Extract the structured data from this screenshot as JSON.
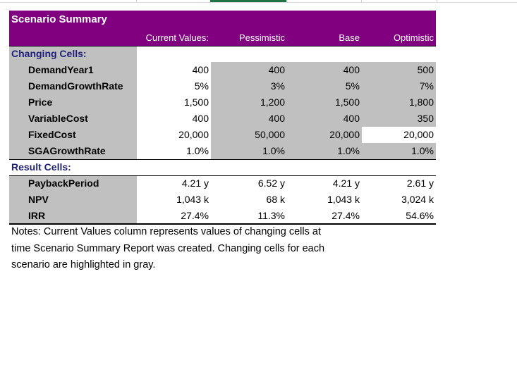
{
  "title": "Scenario Summary",
  "columns": [
    "Current Values:",
    "Pessimistic",
    "Base",
    "Optimistic"
  ],
  "sections": {
    "changing_label": "Changing Cells:",
    "result_label": "Result Cells:"
  },
  "changing_rows": [
    {
      "label": "DemandYear1",
      "values": [
        "400",
        "400",
        "400",
        "500"
      ]
    },
    {
      "label": "DemandGrowthRate",
      "values": [
        "5%",
        "3%",
        "5%",
        "7%"
      ]
    },
    {
      "label": "Price",
      "values": [
        "1,500",
        "1,200",
        "1,500",
        "1,800"
      ]
    },
    {
      "label": "VariableCost",
      "values": [
        "400",
        "400",
        "400",
        "350"
      ]
    },
    {
      "label": "FixedCost",
      "values": [
        "20,000",
        "50,000",
        "20,000",
        "20,000"
      ]
    },
    {
      "label": "SGAGrowthRate",
      "values": [
        "1.0%",
        "1.0%",
        "1.0%",
        "1.0%"
      ]
    }
  ],
  "result_rows": [
    {
      "label": "PaybackPeriod",
      "values": [
        "4.21 y",
        "6.52 y",
        "4.21 y",
        "2.61 y"
      ]
    },
    {
      "label": "NPV",
      "values": [
        "1,043 k",
        "68 k",
        "1,043 k",
        "3,024 k"
      ]
    },
    {
      "label": "IRR",
      "values": [
        "27.4%",
        "11.3%",
        "27.4%",
        "54.6%"
      ]
    }
  ],
  "notes": [
    "Notes:  Current Values column represents values of changing cells at",
    "time Scenario Summary Report was created.  Changing cells for each",
    "scenario are highlighted in gray."
  ],
  "colors": {
    "header_purple": "#800080",
    "highlight_gray": "#c0c0c0",
    "section_text": "#1f1f7a"
  }
}
